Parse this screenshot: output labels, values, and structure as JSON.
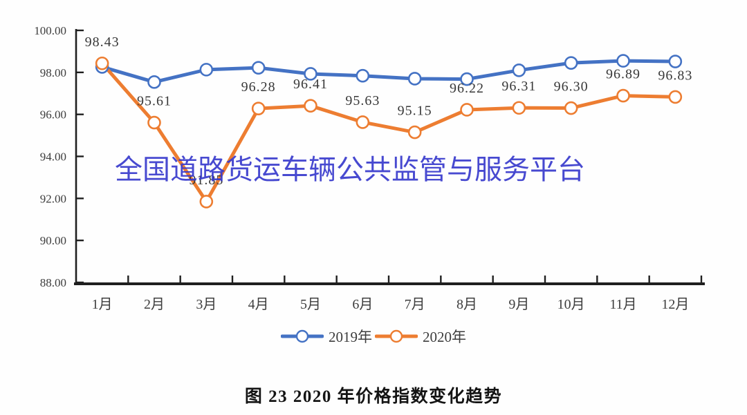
{
  "watermark": {
    "text": "全国道路货运车辆公共监管与服务平台",
    "color": "#3a3ccd"
  },
  "caption": "图 23 2020 年价格指数变化趋势",
  "chart_data": {
    "type": "line",
    "title": "图 23 2020 年价格指数变化趋势",
    "categories": [
      "1月",
      "2月",
      "3月",
      "4月",
      "5月",
      "6月",
      "7月",
      "8月",
      "9月",
      "10月",
      "11月",
      "12月"
    ],
    "series": [
      {
        "name": "2019年",
        "color": "#4472c4",
        "values": [
          98.26,
          97.54,
          98.13,
          98.22,
          97.93,
          97.84,
          97.7,
          97.68,
          98.1,
          98.45,
          98.55,
          98.52
        ],
        "data_labels": null
      },
      {
        "name": "2020年",
        "color": "#ed7d31",
        "values": [
          98.43,
          95.61,
          91.85,
          96.28,
          96.41,
          95.63,
          95.15,
          96.22,
          96.31,
          96.3,
          96.89,
          96.83
        ],
        "data_labels": [
          "98.43",
          "95.61",
          "91.85",
          "96.28",
          "96.41",
          "95.63",
          "95.15",
          "96.22",
          "96.31",
          "96.30",
          "96.89",
          "96.83"
        ]
      }
    ],
    "ylim": [
      88,
      100
    ],
    "yticks": [
      "100.00",
      "98.00",
      "96.00",
      "94.00",
      "92.00",
      "90.00",
      "88.00"
    ],
    "ytick_values": [
      100,
      98,
      96,
      94,
      92,
      90,
      88
    ],
    "xlabel": "",
    "ylabel": "",
    "grid": false,
    "legend_position": "bottom",
    "marker": "circle-open",
    "axis_color": "#1f1f1f",
    "text_color": "#3d3d3d"
  }
}
